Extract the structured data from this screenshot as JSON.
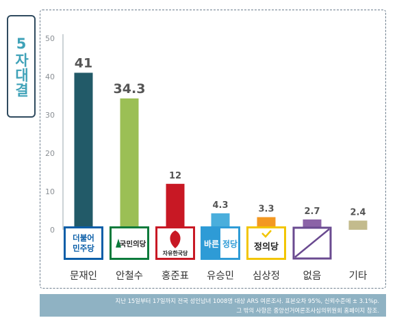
{
  "title": "5자대결",
  "chart_data": {
    "type": "bar",
    "categories": [
      "문재인",
      "안철수",
      "홍준표",
      "유승민",
      "심상정",
      "없음",
      "기타"
    ],
    "values": [
      41,
      34.3,
      12,
      4.3,
      3.3,
      2.7,
      2.4
    ],
    "value_labels": [
      "41",
      "34.3",
      "12",
      "4.3",
      "3.3",
      "2.7",
      "2.4"
    ],
    "colors": [
      "#225a68",
      "#9bbf55",
      "#c81824",
      "#4aaedc",
      "#f39821",
      "#8b63a7",
      "#c3bb8d"
    ],
    "yticks": [
      "0",
      "10",
      "20",
      "30",
      "40",
      "50"
    ],
    "ylim": [
      0,
      50
    ],
    "grid": false,
    "title": "",
    "xlabel": "",
    "ylabel": ""
  },
  "logos": [
    {
      "text": "더불어\n민주당",
      "icon": "democratic-party-logo",
      "color": "#0a5ea8"
    },
    {
      "text": "국민의당",
      "icon": "peoples-party-logo",
      "color": "#0b7a3b"
    },
    {
      "text": "자유한국당",
      "icon": "liberty-korea-party-logo",
      "color": "#c81824"
    },
    {
      "text": "바른 정당",
      "icon": "bareun-party-logo",
      "color": "#2e9bd6"
    },
    {
      "text": "정의당",
      "icon": "justice-party-logo",
      "color": "#f2c500"
    },
    {
      "text": "",
      "icon": "none-slash-icon",
      "color": "#6a4a90"
    }
  ],
  "footer": {
    "line1": "지난 15일부터 17일까지 전국 성인남녀 1008명 대상 ARS 여론조사. 표본오차 95%, 신뢰수준에 ± 3.1%p.",
    "line2": "그 밖의 사항은 중앙선거여론조사심의위원회 홈페이지 참조."
  }
}
